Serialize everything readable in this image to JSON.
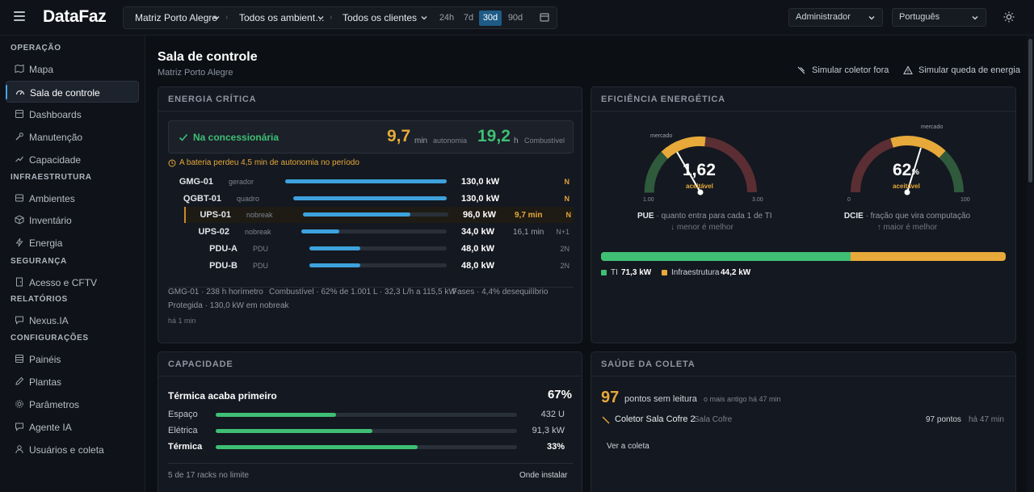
{
  "header": {
    "logo": "DataFaz",
    "site_select": "Matriz Porto Alegre",
    "env_select": "Todos os ambient…",
    "client_select": "Todos os clientes",
    "ranges": [
      "24h",
      "7d",
      "30d",
      "90d"
    ],
    "active_range": "30d",
    "role_select": "Administrador",
    "language_select": "Português"
  },
  "sidebar": {
    "sec_operacao": "OPERAÇÃO",
    "mapa": "Mapa",
    "sala": "Sala de controle",
    "dashboards": "Dashboards",
    "manutencao": "Manutenção",
    "capacidade": "Capacidade",
    "sec_infra": "INFRAESTRUTURA",
    "ambientes": "Ambientes",
    "inventario": "Inventário",
    "energia": "Energia",
    "sec_seg": "SEGURANÇA",
    "acesso": "Acesso e CFTV",
    "sec_rel": "RELATÓRIOS",
    "nexus": "Nexus.IA",
    "sec_conf": "CONFIGURAÇÕES",
    "paineis": "Painéis",
    "plantas": "Plantas",
    "parametros": "Parâmetros",
    "agente": "Agente IA",
    "usuarios": "Usuários e coleta"
  },
  "page": {
    "title": "Sala de controle",
    "subtitle": "Matriz Porto Alegre",
    "action_collector": "Simular coletor fora",
    "action_power": "Simular queda de energia"
  },
  "energia": {
    "heading": "ENERGIA CRÍTICA",
    "status": "Na concessionária",
    "autonomy_value": "9,7",
    "autonomy_unit": "min",
    "autonomy_label": "autonomia",
    "fuel_value": "19,2",
    "fuel_unit": "h",
    "fuel_label": "Combustível",
    "warning": "A bateria perdeu 4,5 min de autonomia no período",
    "rows": [
      {
        "name": "GMG-01",
        "type": "gerador",
        "kw": "130,0 kW",
        "aut": "",
        "red": "N",
        "fill": 1.0
      },
      {
        "name": "QGBT-01",
        "type": "quadro",
        "kw": "130,0 kW",
        "aut": "",
        "red": "N",
        "fill": 1.0
      },
      {
        "name": "UPS-01",
        "type": "nobreak",
        "kw": "96,0 kW",
        "aut": "9,7 min",
        "red": "N",
        "fill": 0.74
      },
      {
        "name": "UPS-02",
        "type": "nobreak",
        "kw": "34,0 kW",
        "aut": "16,1 min",
        "red": "N+1",
        "fill": 0.26
      },
      {
        "name": "PDU-A",
        "type": "PDU",
        "kw": "48,0 kW",
        "aut": "",
        "red": "2N",
        "fill": 0.37
      },
      {
        "name": "PDU-B",
        "type": "PDU",
        "kw": "48,0 kW",
        "aut": "",
        "red": "2N",
        "fill": 0.37
      }
    ],
    "foot1a": "GMG-01 · 238 h horímetro",
    "foot1b": "Combustível · 62% de 1.001 L · 32,3 L/h a 115,5 kW",
    "foot1c": "Fases · 4,4% desequilíbrio",
    "foot2": "Protegida · 130,0 kW em nobreak",
    "foot3": "há 1 min"
  },
  "eficiencia": {
    "heading": "EFICIÊNCIA ENERGÉTICA",
    "pue": {
      "value": "1,62",
      "label": "aceitável",
      "market": "mercado",
      "min": "1.00",
      "max": "3.00",
      "title": "PUE",
      "desc": " · quanto entra para cada 1 de TI",
      "hint": "↓ menor é melhor"
    },
    "dcie": {
      "value": "62",
      "unit": "%",
      "label": "aceitável",
      "market": "mercado",
      "min": "0",
      "max": "100",
      "title": "DCIE",
      "desc": " · fração que vira computação",
      "hint": "↑ maior é melhor"
    },
    "ti_label": "TI",
    "ti_value": "71,3 kW",
    "infra_label": "Infraestrutura",
    "infra_value": "44,2 kW",
    "ti_share": 0.617,
    "colors": {
      "ti": "#3fbf74",
      "infra": "#e6a93a"
    }
  },
  "capacidade": {
    "heading": "CAPACIDADE",
    "title": "Térmica acaba primeiro",
    "pct": "67%",
    "rows": [
      {
        "label": "Espaço",
        "value": "432 U",
        "fill": 0.4
      },
      {
        "label": "Elétrica",
        "value": "91,3 kW",
        "fill": 0.52
      },
      {
        "label": "Térmica",
        "value": "33%",
        "fill": 0.67
      }
    ],
    "footer": "5 de 17 racks no limite",
    "link": "Onde instalar"
  },
  "saude": {
    "heading": "SAÚDE DA COLETA",
    "count": "97",
    "count_label": "pontos sem leitura",
    "oldest": "o mais antigo há 47 min",
    "collector": "Coletor Sala Cofre 2",
    "room": "Sala Cofre",
    "points": "97 pontos",
    "ago": "há 47 min",
    "link": "Ver a coleta"
  }
}
